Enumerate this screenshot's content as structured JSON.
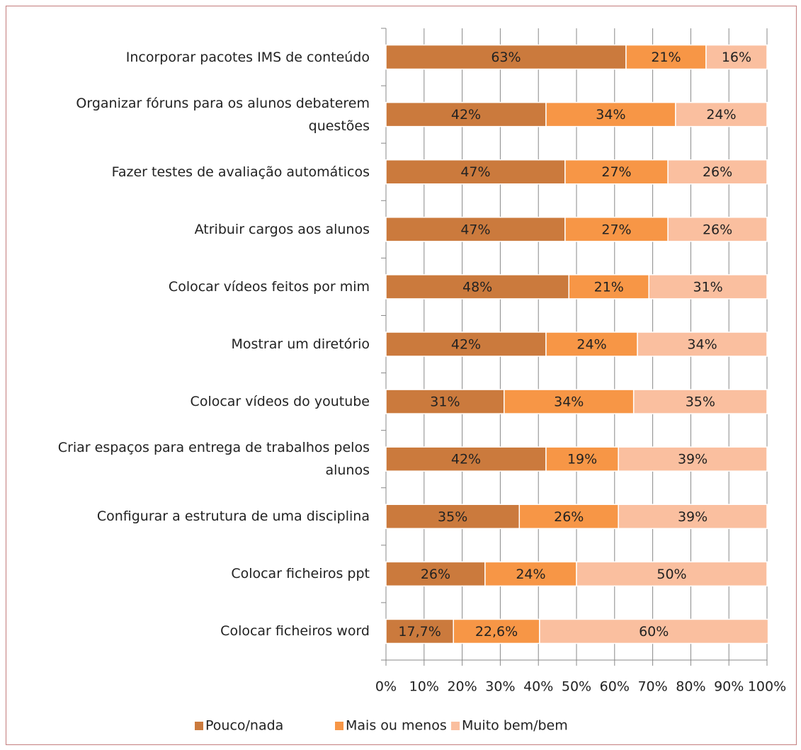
{
  "chart_data": {
    "type": "stacked-barh",
    "categories": [
      "Incorporar pacotes IMS de conteúdo",
      "Organizar fóruns para os alunos debaterem questões",
      "Fazer testes de avaliação automáticos",
      "Atribuir cargos aos alunos",
      "Colocar vídeos feitos por mim",
      "Mostrar um diretório",
      "Colocar vídeos do youtube",
      "Criar espaços para entrega de trabalhos pelos alunos",
      "Configurar a estrutura de uma disciplina",
      "Colocar ficheiros ppt",
      "Colocar ficheiros word"
    ],
    "series": [
      {
        "name": "Pouco/nada",
        "color": "#cb7a3d",
        "values": [
          63,
          42,
          47,
          47,
          48,
          42,
          31,
          42,
          35,
          26,
          17.7
        ],
        "value_labels": [
          "63%",
          "42%",
          "47%",
          "47%",
          "48%",
          "42%",
          "31%",
          "42%",
          "35%",
          "26%",
          "17,7%"
        ]
      },
      {
        "name": "Mais ou menos",
        "color": "#f79646",
        "values": [
          21,
          34,
          27,
          27,
          21,
          24,
          34,
          19,
          26,
          24,
          22.6
        ],
        "value_labels": [
          "21%",
          "34%",
          "27%",
          "27%",
          "21%",
          "24%",
          "34%",
          "19%",
          "26%",
          "24%",
          "22,6%"
        ]
      },
      {
        "name": "Muito bem/bem",
        "color": "#fabf9f",
        "values": [
          16,
          24,
          26,
          26,
          31,
          34,
          35,
          39,
          39,
          50,
          60
        ],
        "value_labels": [
          "16%",
          "24%",
          "26%",
          "26%",
          "31%",
          "34%",
          "35%",
          "39%",
          "39%",
          "50%",
          "60%"
        ]
      }
    ],
    "xlim": [
      0,
      100
    ],
    "xticks": [
      {
        "value": 0,
        "label": "0%"
      },
      {
        "value": 10,
        "label": "10%"
      },
      {
        "value": 20,
        "label": "20%"
      },
      {
        "value": 30,
        "label": "30%"
      },
      {
        "value": 40,
        "label": "40%"
      },
      {
        "value": 50,
        "label": "50%"
      },
      {
        "value": 60,
        "label": "60%"
      },
      {
        "value": 70,
        "label": "70%"
      },
      {
        "value": 80,
        "label": "80%"
      },
      {
        "value": 90,
        "label": "90%"
      },
      {
        "value": 100,
        "label": "100%"
      }
    ],
    "grid": true,
    "legend": "bottom"
  }
}
